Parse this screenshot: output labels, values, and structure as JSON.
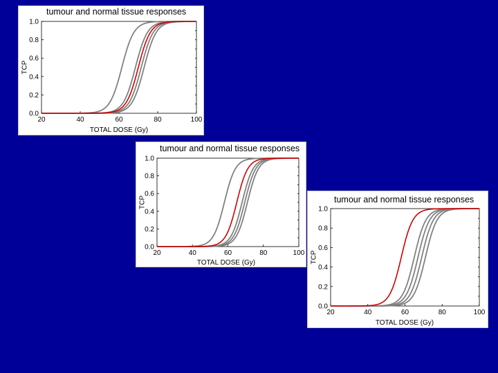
{
  "colors": {
    "background": "#000099",
    "grey_curve": "#808080",
    "red_curve": "#cc0000",
    "axis": "#000000"
  },
  "chart_data": [
    {
      "type": "line",
      "title": "tumour and normal tissue responses",
      "xlabel": "TOTAL DOSE (Gy)",
      "ylabel": "TCP",
      "xlim": [
        20,
        100
      ],
      "ylim": [
        0,
        1
      ],
      "xticks": [
        "20",
        "40",
        "60",
        "80",
        "100"
      ],
      "yticks": [
        "0.0",
        "0.2",
        "0.4",
        "0.6",
        "0.8",
        "1.0"
      ],
      "grid": false,
      "curve_shape": "sigmoid",
      "series": [
        {
          "color": "#808080",
          "d50": 61.5,
          "k": 0.32
        },
        {
          "color": "#808080",
          "d50": 68.5,
          "k": 0.32
        },
        {
          "color": "#cc0000",
          "d50": 70.0,
          "k": 0.32
        },
        {
          "color": "#808080",
          "d50": 71.5,
          "k": 0.32
        },
        {
          "color": "#808080",
          "d50": 73.0,
          "k": 0.32
        }
      ]
    },
    {
      "type": "line",
      "title": "tumour and normal tissue responses",
      "xlabel": "TOTAL DOSE (Gy)",
      "ylabel": "TCP",
      "xlim": [
        20,
        100
      ],
      "ylim": [
        0,
        1
      ],
      "xticks": [
        "20",
        "40",
        "60",
        "80",
        "100"
      ],
      "yticks": [
        "0.0",
        "0.2",
        "0.4",
        "0.6",
        "0.8",
        "1.0"
      ],
      "grid": false,
      "curve_shape": "sigmoid",
      "series": [
        {
          "color": "#808080",
          "d50": 58.0,
          "k": 0.32
        },
        {
          "color": "#cc0000",
          "d50": 65.0,
          "k": 0.32
        },
        {
          "color": "#808080",
          "d50": 68.0,
          "k": 0.32
        },
        {
          "color": "#808080",
          "d50": 69.5,
          "k": 0.32
        },
        {
          "color": "#808080",
          "d50": 71.0,
          "k": 0.32
        }
      ]
    },
    {
      "type": "line",
      "title": "tumour and normal tissue responses",
      "xlabel": "TOTAL DOSE (Gy)",
      "ylabel": "TCP",
      "xlim": [
        20,
        100
      ],
      "ylim": [
        0,
        1
      ],
      "xticks": [
        "20",
        "40",
        "60",
        "80",
        "100"
      ],
      "yticks": [
        "0.0",
        "0.2",
        "0.4",
        "0.6",
        "0.8",
        "1.0"
      ],
      "grid": false,
      "curve_shape": "sigmoid",
      "series": [
        {
          "color": "#cc0000",
          "d50": 58.0,
          "k": 0.32
        },
        {
          "color": "#808080",
          "d50": 65.0,
          "k": 0.32
        },
        {
          "color": "#808080",
          "d50": 67.0,
          "k": 0.32
        },
        {
          "color": "#808080",
          "d50": 69.0,
          "k": 0.32
        },
        {
          "color": "#808080",
          "d50": 71.0,
          "k": 0.32
        }
      ]
    }
  ]
}
